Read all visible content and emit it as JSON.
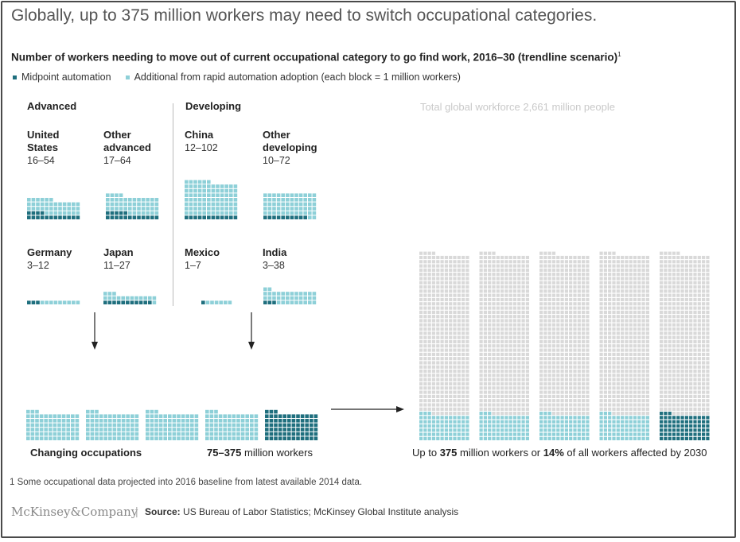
{
  "title": "Globally, up to 375 million workers may need to switch occupational categories.",
  "subtitle": "Number of workers needing to move out of current occupational category to go find work, 2016–30 (trendline scenario)",
  "subtitle_footnote_marker": "1",
  "legend": {
    "midpoint_label": "Midpoint automation",
    "additional_label": "Additional from rapid automation adoption (each block = 1 million workers)"
  },
  "colors": {
    "midpoint": "#1f6f7e",
    "additional": "#8ed0d8",
    "workforce": "#d9d9d9",
    "text_muted": "#c9c9c9"
  },
  "groups": {
    "advanced_label": "Advanced",
    "developing_label": "Developing"
  },
  "chart_data": {
    "type": "waffle",
    "unit": "million workers",
    "block_value": 1,
    "countries": [
      {
        "group": "Advanced",
        "name": "United\nStates",
        "range": "16–54",
        "midpoint": 16,
        "rapid": 54
      },
      {
        "group": "Advanced",
        "name": "Other\nadvanced",
        "range": "17–64",
        "midpoint": 17,
        "rapid": 64
      },
      {
        "group": "Developing",
        "name": "China",
        "range": "12–102",
        "midpoint": 12,
        "rapid": 102
      },
      {
        "group": "Developing",
        "name": "Other\ndeveloping",
        "range": "10–72",
        "midpoint": 10,
        "rapid": 72
      },
      {
        "group": "Advanced",
        "name": "Germany",
        "range": "3–12",
        "midpoint": 3,
        "rapid": 12
      },
      {
        "group": "Advanced",
        "name": "Japan",
        "range": "11–27",
        "midpoint": 11,
        "rapid": 27
      },
      {
        "group": "Developing",
        "name": "Mexico",
        "range": "1–7",
        "midpoint": 1,
        "rapid": 7
      },
      {
        "group": "Developing",
        "name": "India",
        "range": "3–38",
        "midpoint": 3,
        "rapid": 38
      }
    ],
    "total": {
      "midpoint": 75,
      "rapid": 375
    },
    "global_workforce": 2661,
    "global_share_percent": 14
  },
  "bottom": {
    "changing_label": "Changing occupations",
    "range_value": "75–375",
    "range_unit": " million workers"
  },
  "global": {
    "title": "Total global workforce 2,661 million people",
    "caption_pre": "Up to ",
    "caption_value": "375",
    "caption_mid": " million workers or ",
    "caption_pct": "14%",
    "caption_post": " of all workers affected by 2030"
  },
  "footnote": "1 Some occupational data projected into 2016 baseline from latest available 2014 data.",
  "logo": "McKinsey&Company",
  "source_label": "Source:",
  "source_text": " US Bureau of Labor Statistics; McKinsey Global Institute analysis"
}
